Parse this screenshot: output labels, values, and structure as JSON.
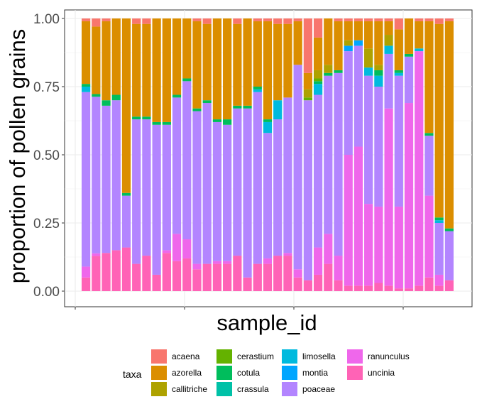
{
  "chart_data": {
    "type": "bar",
    "stacked": true,
    "xlabel": "sample_id",
    "ylabel": "proportion of pollen grains",
    "ylim": [
      0,
      1
    ],
    "yticks": [
      "0.00",
      "0.25",
      "0.50",
      "0.75",
      "1.00"
    ],
    "grid": true,
    "legend": {
      "title": "taxa",
      "position": "bottom"
    },
    "taxa": [
      {
        "name": "acaena",
        "color": "#F8766D"
      },
      {
        "name": "azorella",
        "color": "#DB8E00"
      },
      {
        "name": "callitriche",
        "color": "#AEA200"
      },
      {
        "name": "cerastium",
        "color": "#64B200"
      },
      {
        "name": "cotula",
        "color": "#00BD5C"
      },
      {
        "name": "crassula",
        "color": "#00C1A7"
      },
      {
        "name": "limosella",
        "color": "#00BADE"
      },
      {
        "name": "montia",
        "color": "#00A6FF"
      },
      {
        "name": "poaceae",
        "color": "#B385FF"
      },
      {
        "name": "ranunculus",
        "color": "#EF67EB"
      },
      {
        "name": "uncinia",
        "color": "#FF63B6"
      }
    ],
    "series_order_bottom_to_top": [
      "uncinia",
      "ranunculus",
      "poaceae",
      "montia",
      "limosella",
      "crassula",
      "cotula",
      "cerastium",
      "callitriche",
      "azorella",
      "acaena"
    ],
    "samples": [
      {
        "uncinia": 0.05,
        "ranunculus": 0.04,
        "poaceae": 0.64,
        "limosella": 0.02,
        "cotula": 0.01,
        "azorella": 0.23,
        "acaena": 0.01
      },
      {
        "uncinia": 0.13,
        "ranunculus": 0.01,
        "poaceae": 0.58,
        "cotula": 0.01,
        "azorella": 0.25,
        "acaena": 0.03
      },
      {
        "uncinia": 0.14,
        "poaceae": 0.54,
        "cotula": 0.02,
        "azorella": 0.29,
        "acaena": 0.01
      },
      {
        "uncinia": 0.15,
        "poaceae": 0.55,
        "cotula": 0.02,
        "azorella": 0.28
      },
      {
        "uncinia": 0.16,
        "poaceae": 0.19,
        "cotula": 0.01,
        "azorella": 0.64
      },
      {
        "uncinia": 0.1,
        "poaceae": 0.53,
        "cotula": 0.01,
        "azorella": 0.34,
        "acaena": 0.02
      },
      {
        "uncinia": 0.13,
        "poaceae": 0.5,
        "cotula": 0.01,
        "azorella": 0.34,
        "acaena": 0.02
      },
      {
        "uncinia": 0.06,
        "poaceae": 0.55,
        "cotula": 0.01,
        "azorella": 0.38
      },
      {
        "uncinia": 0.14,
        "ranunculus": 0.01,
        "poaceae": 0.46,
        "cotula": 0.01,
        "azorella": 0.38
      },
      {
        "uncinia": 0.11,
        "ranunculus": 0.1,
        "poaceae": 0.5,
        "cotula": 0.01,
        "azorella": 0.28
      },
      {
        "uncinia": 0.12,
        "ranunculus": 0.07,
        "poaceae": 0.58,
        "cotula": 0.01,
        "azorella": 0.22
      },
      {
        "uncinia": 0.08,
        "ranunculus": 0.02,
        "poaceae": 0.56,
        "cotula": 0.01,
        "azorella": 0.32,
        "acaena": 0.01
      },
      {
        "uncinia": 0.1,
        "poaceae": 0.59,
        "cotula": 0.01,
        "azorella": 0.28,
        "acaena": 0.02
      },
      {
        "uncinia": 0.1,
        "ranunculus": 0.01,
        "poaceae": 0.51,
        "cotula": 0.01,
        "azorella": 0.37
      },
      {
        "uncinia": 0.1,
        "ranunculus": 0.01,
        "poaceae": 0.5,
        "cotula": 0.02,
        "azorella": 0.37
      },
      {
        "uncinia": 0.13,
        "poaceae": 0.54,
        "cotula": 0.01,
        "azorella": 0.3,
        "acaena": 0.02
      },
      {
        "uncinia": 0.05,
        "poaceae": 0.62,
        "cotula": 0.01,
        "azorella": 0.32
      },
      {
        "uncinia": 0.1,
        "poaceae": 0.63,
        "limosella": 0.01,
        "cotula": 0.01,
        "azorella": 0.24,
        "acaena": 0.01
      },
      {
        "uncinia": 0.1,
        "ranunculus": 0.02,
        "poaceae": 0.46,
        "limosella": 0.04,
        "cotula": 0.01,
        "azorella": 0.36,
        "acaena": 0.01
      },
      {
        "uncinia": 0.13,
        "poaceae": 0.5,
        "limosella": 0.07,
        "azorella": 0.28,
        "acaena": 0.02
      },
      {
        "uncinia": 0.13,
        "ranunculus": 0.01,
        "poaceae": 0.57,
        "azorella": 0.27,
        "acaena": 0.02
      },
      {
        "uncinia": 0.05,
        "ranunculus": 0.03,
        "poaceae": 0.75,
        "azorella": 0.16,
        "acaena": 0.01
      },
      {
        "uncinia": 0.04,
        "poaceae": 0.66,
        "cerastium": 0.01,
        "callitriche": 0.03,
        "azorella": 0.06,
        "acaena": 0.2
      },
      {
        "uncinia": 0.06,
        "ranunculus": 0.1,
        "poaceae": 0.56,
        "limosella": 0.04,
        "cotula": 0.01,
        "cerastium": 0.01,
        "callitriche": 0.03,
        "azorella": 0.12,
        "acaena": 0.07
      },
      {
        "uncinia": 0.1,
        "ranunculus": 0.11,
        "poaceae": 0.58,
        "cotula": 0.01,
        "callitriche": 0.03,
        "azorella": 0.17
      },
      {
        "uncinia": 0.04,
        "ranunculus": 0.09,
        "poaceae": 0.67,
        "cotula": 0.01,
        "azorella": 0.18,
        "acaena": 0.01
      },
      {
        "uncinia": 0.02,
        "ranunculus": 0.48,
        "poaceae": 0.38,
        "montia": 0.02,
        "callitriche": 0.02,
        "azorella": 0.07,
        "acaena": 0.01
      },
      {
        "uncinia": 0.02,
        "ranunculus": 0.51,
        "poaceae": 0.37,
        "montia": 0.02,
        "azorella": 0.07,
        "acaena": 0.01
      },
      {
        "uncinia": 0.02,
        "ranunculus": 0.3,
        "poaceae": 0.47,
        "limosella": 0.03,
        "callitriche": 0.07,
        "azorella": 0.1,
        "acaena": 0.01
      },
      {
        "uncinia": 0.03,
        "ranunculus": 0.28,
        "poaceae": 0.44,
        "limosella": 0.04,
        "cotula": 0.02,
        "callitriche": 0.02,
        "azorella": 0.16,
        "acaena": 0.01
      },
      {
        "uncinia": 0.02,
        "ranunculus": 0.65,
        "poaceae": 0.2,
        "limosella": 0.03,
        "callitriche": 0.04,
        "azorella": 0.05,
        "acaena": 0.01
      },
      {
        "uncinia": 0.01,
        "ranunculus": 0.3,
        "poaceae": 0.48,
        "limosella": 0.01,
        "cotula": 0.01,
        "azorella": 0.15,
        "acaena": 0.04
      },
      {
        "uncinia": 0.01,
        "ranunculus": 0.68,
        "poaceae": 0.17,
        "cotula": 0.01,
        "azorella": 0.13
      },
      {
        "uncinia": 0.02,
        "ranunculus": 0.86,
        "limosella": 0.01,
        "azorella": 0.1,
        "acaena": 0.01
      },
      {
        "uncinia": 0.05,
        "ranunculus": 0.3,
        "poaceae": 0.22,
        "cotula": 0.01,
        "azorella": 0.41,
        "acaena": 0.01
      },
      {
        "uncinia": 0.02,
        "ranunculus": 0.04,
        "poaceae": 0.19,
        "limosella": 0.01,
        "cotula": 0.01,
        "azorella": 0.71,
        "acaena": 0.02
      },
      {
        "uncinia": 0.04,
        "poaceae": 0.18,
        "cotula": 0.01,
        "azorella": 0.76,
        "acaena": 0.01
      }
    ]
  }
}
